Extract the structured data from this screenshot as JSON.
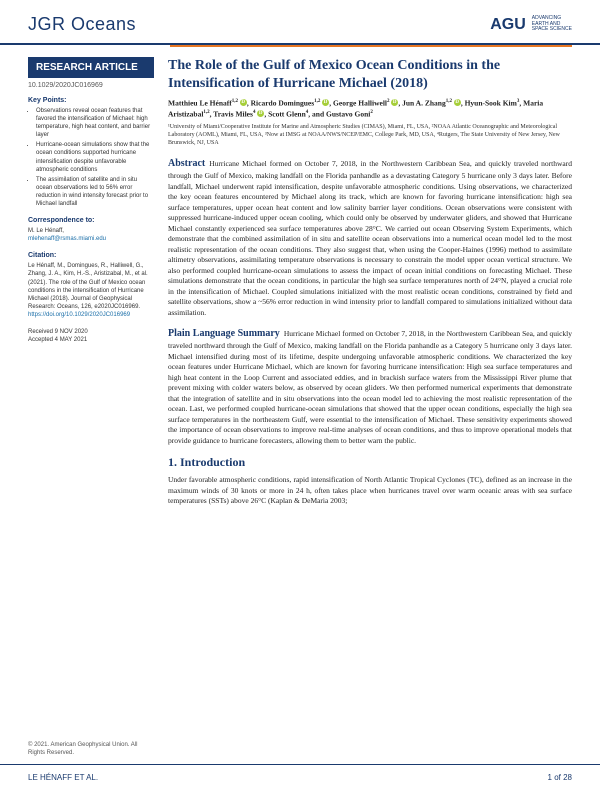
{
  "journal_name": "JGR Oceans",
  "agu_brand": "AGU",
  "agu_tagline1": "ADVANCING",
  "agu_tagline2": "EARTH AND",
  "agu_tagline3": "SPACE SCIENCE",
  "sidebar": {
    "header": "RESEARCH ARTICLE",
    "doi": "10.1029/2020JC016969",
    "key_points_title": "Key Points:",
    "key_points": [
      "Observations reveal ocean features that favored the intensification of Michael: high temperature, high heat content, and barrier layer",
      "Hurricane-ocean simulations show that the ocean conditions supported hurricane intensification despite unfavorable atmospheric conditions",
      "The assimilation of satellite and in situ ocean observations led to 56% error reduction in wind intensity forecast prior to Michael landfall"
    ],
    "corr_title": "Correspondence to:",
    "corr_name": "M. Le Hénaff,",
    "corr_email": "mlehenaff@rsmas.miami.edu",
    "citation_title": "Citation:",
    "citation_body": "Le Hénaff, M., Domingues, R., Halliwell, G., Zhang, J. A., Kim, H.-S., Aristizabal, M., et al. (2021). The role of the Gulf of Mexico ocean conditions in the intensification of Hurricane Michael (2018). Journal of Geophysical Research: Oceans, 126, e2020JC016969.",
    "citation_doi": "https://doi.org/10.1029/2020JC016969",
    "received": "Received 9 NOV 2020",
    "accepted": "Accepted 4 MAY 2021"
  },
  "title": "The Role of the Gulf of Mexico Ocean Conditions in the Intensification of Hurricane Michael (2018)",
  "authors_html": "Matthieu Le Hénaff<sup>1,2</sup> ⬤, Ricardo Domingues<sup>1,2</sup> ⬤, George Halliwell<sup>2</sup> ⬤, Jun A. Zhang<sup>1,2</sup> ⬤, Hyun-Sook Kim<sup>3</sup>, Maria Aristizabal<sup>1,2</sup>, Travis Miles<sup>4</sup> ⬤, Scott Glenn<sup>4</sup>, and Gustavo Goni<sup>2</sup>",
  "affiliations": "¹University of Miami/Cooperative Institute for Marine and Atmospheric Studies (CIMAS), Miami, FL, USA, ²NOAA Atlantic Oceanographic and Meteorological Laboratory (AOML), Miami, FL, USA, ³Now at IMSG at NOAA/NWS/NCEP/EMC, College Park, MD, USA, ⁴Rutgers, The State University of New Jersey, New Brunswick, NJ, USA",
  "abstract_label": "Abstract",
  "abstract_body": "Hurricane Michael formed on October 7, 2018, in the Northwestern Caribbean Sea, and quickly traveled northward through the Gulf of Mexico, making landfall on the Florida panhandle as a devastating Category 5 hurricane only 3 days later. Before landfall, Michael underwent rapid intensification, despite unfavorable atmospheric conditions. Using observations, we characterized the key ocean features encountered by Michael along its track, which are known for favoring hurricane intensification: high sea surface temperatures, upper ocean heat content and low salinity barrier layer conditions. Ocean observations were consistent with suppressed hurricane-induced upper ocean cooling, which could only be observed by underwater gliders, and showed that Hurricane Michael constantly experienced sea surface temperatures above 28°C. We carried out ocean Observing System Experiments, which demonstrate that the combined assimilation of in situ and satellite ocean observations into a numerical ocean model led to the most realistic representation of the ocean conditions. They also suggest that, when using the Cooper-Haines (1996) method to assimilate altimetry observations, assimilating temperature observations is necessary to constrain the model upper ocean vertical structure. We also performed coupled hurricane-ocean simulations to assess the impact of ocean initial conditions on forecasting Michael. These simulations demonstrate that the ocean conditions, in particular the high sea surface temperatures north of 24°N, played a crucial role in the intensification of Michael. Coupled simulations initialized with the most realistic ocean conditions, constrained by field and satellite observations, show a ~56% error reduction in wind intensity prior to landfall compared to simulations initialized without data assimilation.",
  "pls_label": "Plain Language Summary",
  "pls_body": "Hurricane Michael formed on October 7, 2018, in the Northwestern Caribbean Sea, and quickly traveled northward through the Gulf of Mexico, making landfall on the Florida panhandle as a Category 5 hurricane only 3 days later. Michael intensified during most of its lifetime, despite undergoing unfavorable atmospheric conditions. We characterized the key ocean features under Hurricane Michael, which are known for favoring hurricane intensification: High sea surface temperatures and high heat content in the Loop Current and associated eddies, and in brackish surface waters from the Mississippi River plume that prevent mixing with colder waters below, as observed by ocean gliders. We then performed numerical experiments that demonstrate that the integration of satellite and in situ observations into the ocean model led to achieving the most realistic representation of the ocean. Last, we performed coupled hurricane-ocean simulations that showed that the upper ocean conditions, especially the high sea surface temperatures in the northeastern Gulf, were essential to the intensification of Michael. These sensitivity experiments showed the importance of ocean observations to improve real-time analyses of ocean conditions, and thus to improve operational models that provide guidance to hurricane forecasters, allowing them to better warn the public.",
  "intro_label": "1.  Introduction",
  "intro_body": "Under favorable atmospheric conditions, rapid intensification of North Atlantic Tropical Cyclones (TC), defined as an increase in the maximum winds of 30 knots or more in 24 h, often takes place when hurricanes travel over warm oceanic areas with sea surface temperatures (SSTs) above 26°C (Kaplan & DeMaria 2003;",
  "copyright": "© 2021. American Geophysical Union. All Rights Reserved.",
  "footer_left": "LE HÉNAFF ET AL.",
  "footer_right": "1 of 28",
  "colors": {
    "brand": "#1a3a6e",
    "accent": "#e87722",
    "link": "#1a6ea8",
    "orcid": "#a6ce39"
  }
}
